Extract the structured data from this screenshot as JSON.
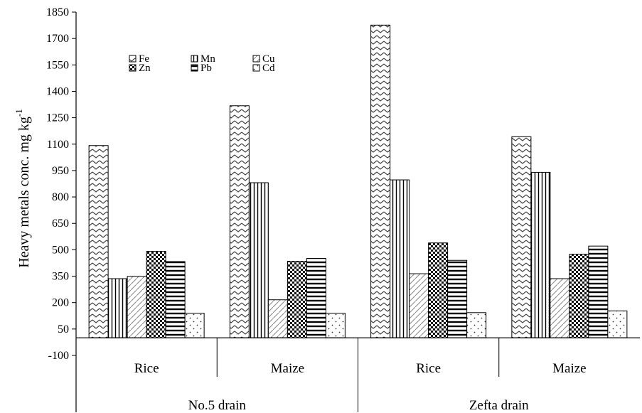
{
  "chart_data": {
    "type": "bar",
    "ylabel": "Heavy metals conc. mg kg",
    "ylabel_superscript": "-1",
    "ylim": [
      -100,
      1850
    ],
    "yticks": [
      -100,
      50,
      200,
      350,
      500,
      650,
      800,
      950,
      1100,
      1250,
      1400,
      1550,
      1700,
      1850
    ],
    "grid": false,
    "legend_position": "top-left",
    "groups": [
      {
        "label": "No.5 drain",
        "categories": [
          "Rice",
          "Maize"
        ]
      },
      {
        "label": "Zefta drain",
        "categories": [
          "Rice",
          "Maize"
        ]
      }
    ],
    "categories": [
      "Rice",
      "Maize",
      "Rice",
      "Maize"
    ],
    "series": [
      {
        "name": "Fe",
        "pattern": "zigzag",
        "values": [
          1092,
          1318,
          1776,
          1142
        ]
      },
      {
        "name": "Mn",
        "pattern": "vertical",
        "values": [
          336,
          881,
          897,
          940
        ]
      },
      {
        "name": "Cu",
        "pattern": "diagonal",
        "values": [
          349,
          216,
          364,
          336
        ]
      },
      {
        "name": "Zn",
        "pattern": "checker",
        "values": [
          491,
          435,
          539,
          475
        ]
      },
      {
        "name": "Pb",
        "pattern": "horizontal",
        "values": [
          433,
          451,
          440,
          521
        ]
      },
      {
        "name": "Cd",
        "pattern": "dots",
        "values": [
          140,
          140,
          143,
          153
        ]
      }
    ]
  }
}
